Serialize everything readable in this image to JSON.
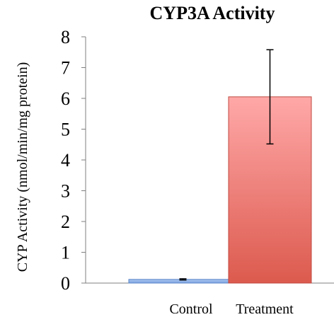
{
  "chart_data": {
    "type": "bar",
    "title": "CYP3A Activity",
    "ylabel": "CYP Activity (nmol/min/mg protein)",
    "xlabel": "",
    "categories": [
      "Control",
      "Treatment"
    ],
    "values": [
      0.12,
      6.05
    ],
    "error": [
      0.02,
      1.53
    ],
    "ylim": [
      0,
      8
    ],
    "yticks": [
      0,
      1,
      2,
      3,
      4,
      5,
      6,
      7,
      8
    ],
    "grid": false,
    "legend": "none",
    "colors": {
      "Control": {
        "top": "#a9c4ee",
        "bottom": "#7fa6e0",
        "stroke": "#5b86c8"
      },
      "Treatment": {
        "top": "#ffa8a8",
        "bottom": "#dc5a4e",
        "stroke": "#c04a40"
      }
    }
  }
}
